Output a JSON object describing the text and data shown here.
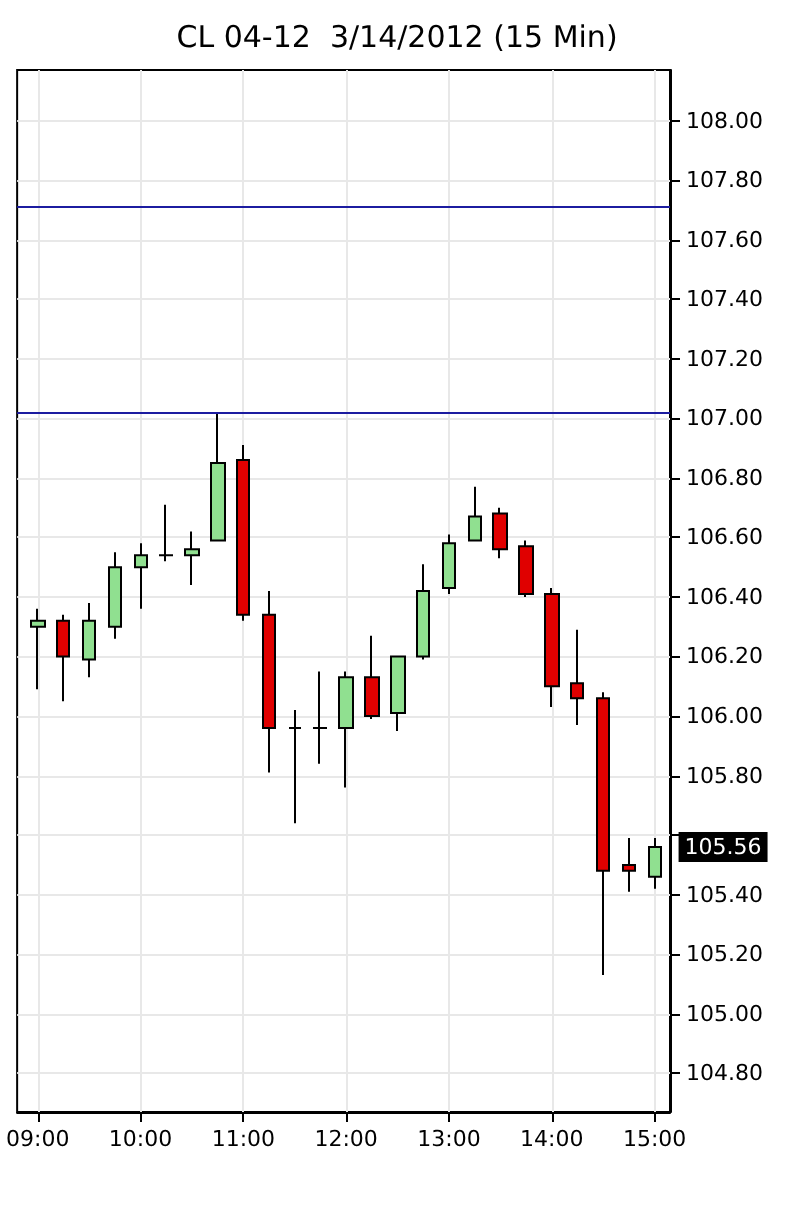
{
  "chart_data": {
    "type": "candlestick",
    "title": "CL 04-12  3/14/2012 (15 Min)",
    "x": [
      9,
      9.25,
      9.5,
      9.75,
      10,
      10.25,
      10.5,
      10.75,
      11,
      11.25,
      11.5,
      11.75,
      12,
      12.25,
      12.5,
      12.75,
      13,
      13.25,
      13.5,
      13.75,
      14,
      14.25,
      14.5,
      14.75,
      15
    ],
    "ohlc": [
      [
        106.3,
        106.36,
        106.09,
        106.32
      ],
      [
        106.32,
        106.34,
        106.05,
        106.2
      ],
      [
        106.19,
        106.38,
        106.13,
        106.32
      ],
      [
        106.3,
        106.55,
        106.26,
        106.5
      ],
      [
        106.5,
        106.58,
        106.36,
        106.54
      ],
      [
        106.54,
        106.71,
        106.52,
        106.54
      ],
      [
        106.54,
        106.62,
        106.44,
        106.56
      ],
      [
        106.59,
        107.02,
        106.59,
        106.85
      ],
      [
        106.86,
        106.91,
        106.32,
        106.34
      ],
      [
        106.34,
        106.42,
        105.81,
        105.96
      ],
      [
        105.96,
        106.02,
        105.64,
        105.96
      ],
      [
        105.96,
        106.15,
        105.84,
        105.96
      ],
      [
        105.96,
        106.15,
        105.76,
        106.13
      ],
      [
        106.13,
        106.27,
        105.99,
        106.0
      ],
      [
        106.01,
        106.2,
        105.95,
        106.2
      ],
      [
        106.2,
        106.51,
        106.19,
        106.42
      ],
      [
        106.43,
        106.61,
        106.41,
        106.58
      ],
      [
        106.59,
        106.77,
        106.59,
        106.67
      ],
      [
        106.68,
        106.7,
        106.53,
        106.56
      ],
      [
        106.57,
        106.59,
        106.4,
        106.41
      ],
      [
        106.41,
        106.43,
        106.03,
        106.1
      ],
      [
        106.11,
        106.29,
        105.97,
        106.06
      ],
      [
        106.06,
        106.08,
        105.13,
        105.48
      ],
      [
        105.5,
        105.59,
        105.41,
        105.48
      ],
      [
        105.46,
        105.59,
        105.42,
        105.56
      ]
    ],
    "colors": [
      "#90e090",
      "#e00000",
      "#90e090",
      "#90e090",
      "#90e090",
      "#000000",
      "#90e090",
      "#90e090",
      "#e00000",
      "#e00000",
      "#000000",
      "#000000",
      "#90e090",
      "#e00000",
      "#90e090",
      "#90e090",
      "#90e090",
      "#90e090",
      "#e00000",
      "#e00000",
      "#e00000",
      "#e00000",
      "#e00000",
      "#e00000",
      "#90e090"
    ],
    "xlim": [
      8.8,
      15.15
    ],
    "xticks": [
      {
        "value": 9,
        "label": "09:00"
      },
      {
        "value": 10,
        "label": "10:00"
      },
      {
        "value": 11,
        "label": "11:00"
      },
      {
        "value": 12,
        "label": "12:00"
      },
      {
        "value": 13,
        "label": "13:00"
      },
      {
        "value": 14,
        "label": "14:00"
      },
      {
        "value": 15,
        "label": "15:00"
      }
    ],
    "ylim": [
      104.67,
      108.17
    ],
    "yticks": [
      {
        "value": 104.8,
        "label": "104.80"
      },
      {
        "value": 105,
        "label": "105.00"
      },
      {
        "value": 105.2,
        "label": "105.20"
      },
      {
        "value": 105.4,
        "label": "105.40"
      },
      {
        "value": 105.6,
        "label": null
      },
      {
        "value": 105.8,
        "label": "105.80"
      },
      {
        "value": 106,
        "label": "106.00"
      },
      {
        "value": 106.2,
        "label": "106.20"
      },
      {
        "value": 106.4,
        "label": "106.40"
      },
      {
        "value": 106.6,
        "label": "106.60"
      },
      {
        "value": 106.8,
        "label": "106.80"
      },
      {
        "value": 107,
        "label": "107.00"
      },
      {
        "value": 107.2,
        "label": "107.20"
      },
      {
        "value": 107.4,
        "label": "107.40"
      },
      {
        "value": 107.6,
        "label": "107.60"
      },
      {
        "value": 107.8,
        "label": "107.80"
      },
      {
        "value": 108,
        "label": "108.00"
      }
    ],
    "grid": true,
    "ref_lines": [
      {
        "axis": "y",
        "value": 107.71,
        "color": "#1c1ca0"
      },
      {
        "axis": "y",
        "value": 107.02,
        "color": "#1c1ca0"
      }
    ],
    "annotations": [
      {
        "text": "105.56",
        "x": 15,
        "y": 105.56
      }
    ]
  }
}
